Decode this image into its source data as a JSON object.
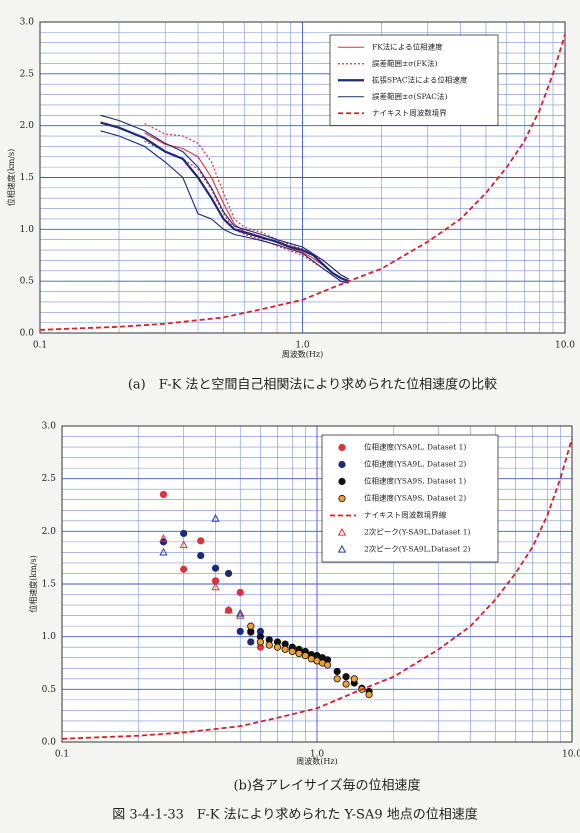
{
  "chart_data": [
    {
      "type": "line",
      "caption": "(a)　F-K 法と空間自己相関法により求められた位相速度の比較",
      "xlabel": "周波数(Hz)",
      "ylabel": "位相速度(km/s)",
      "xscale": "log",
      "grid": true,
      "minor_grid": true,
      "legend": "top-right",
      "xlim": [
        0.1,
        10
      ],
      "xticks": [
        0.1,
        {
          "value": 1,
          "label": "1.0"
        },
        {
          "value": 10,
          "label": "10.0"
        }
      ],
      "ylim": [
        0,
        3
      ],
      "yticks": [
        {
          "value": 0,
          "label": "0.0"
        },
        0.5,
        {
          "value": 1,
          "label": "1.0"
        },
        1.5,
        {
          "value": 2,
          "label": "2.0"
        },
        2.5,
        {
          "value": 3,
          "label": "3.0"
        }
      ],
      "series": [
        {
          "name": "FK法による位相速度",
          "color": "#e0303a",
          "style": "solid",
          "x": [
            0.25,
            0.3,
            0.35,
            0.4,
            0.45,
            0.5,
            0.55,
            0.6,
            0.7,
            0.8,
            0.9,
            1.0,
            1.1,
            1.2,
            1.3,
            1.4,
            1.5
          ],
          "values": [
            1.93,
            1.82,
            1.78,
            1.7,
            1.5,
            1.25,
            1.05,
            0.98,
            0.93,
            0.87,
            0.82,
            0.78,
            0.72,
            0.65,
            0.58,
            0.53,
            0.5
          ]
        },
        {
          "name": "誤差範囲±σ(FK法)",
          "color": "#e0303a",
          "style": "dotted",
          "x": [
            0.25,
            0.3,
            0.35,
            0.4,
            0.45,
            0.5,
            0.55,
            0.6,
            0.7,
            0.8,
            1.0,
            1.2,
            1.4,
            1.5
          ],
          "upper": [
            2.02,
            1.92,
            1.9,
            1.83,
            1.65,
            1.35,
            1.1,
            1.02,
            0.97,
            0.9,
            0.81,
            0.7,
            0.56,
            0.52
          ],
          "lower": [
            1.85,
            1.75,
            1.68,
            1.58,
            1.38,
            1.15,
            1.0,
            0.95,
            0.9,
            0.84,
            0.75,
            0.62,
            0.5,
            0.48
          ]
        },
        {
          "name": "拡張SPAC法による位相速度",
          "color": "#1c2a7a",
          "style": "thick",
          "x": [
            0.17,
            0.2,
            0.25,
            0.3,
            0.35,
            0.4,
            0.45,
            0.5,
            0.55,
            0.6,
            0.7,
            0.8,
            0.9,
            1.0,
            1.1,
            1.2,
            1.3,
            1.4,
            1.5
          ],
          "values": [
            2.03,
            1.98,
            1.88,
            1.75,
            1.68,
            1.5,
            1.3,
            1.1,
            1.0,
            0.97,
            0.92,
            0.88,
            0.83,
            0.8,
            0.75,
            0.66,
            0.58,
            0.53,
            0.5
          ]
        },
        {
          "name": "誤差範囲±σ(SPAC法)",
          "color": "#1c2a7a",
          "style": "solid",
          "x": [
            0.17,
            0.2,
            0.25,
            0.3,
            0.35,
            0.4,
            0.45,
            0.5,
            0.55,
            0.6,
            0.7,
            0.8,
            1.0,
            1.2,
            1.4,
            1.5
          ],
          "upper": [
            2.1,
            2.05,
            1.95,
            1.83,
            1.75,
            1.6,
            1.4,
            1.17,
            1.03,
            1.0,
            0.95,
            0.9,
            0.83,
            0.7,
            0.56,
            0.52
          ],
          "lower": [
            1.95,
            1.9,
            1.8,
            1.65,
            1.5,
            1.15,
            1.1,
            1.0,
            0.95,
            0.93,
            0.89,
            0.85,
            0.77,
            0.62,
            0.5,
            0.48
          ]
        },
        {
          "name": "ナイキスト周波数境界",
          "color": "#d8202a",
          "style": "dashed",
          "x": [
            0.1,
            0.2,
            0.3,
            0.5,
            0.7,
            1.0,
            1.5,
            2,
            3,
            4,
            5,
            6,
            7,
            8,
            9,
            10
          ],
          "values": [
            0.03,
            0.06,
            0.09,
            0.15,
            0.23,
            0.32,
            0.5,
            0.62,
            0.88,
            1.1,
            1.35,
            1.6,
            1.85,
            2.15,
            2.5,
            2.88
          ]
        }
      ]
    },
    {
      "type": "scatter",
      "caption": "(b)各アレイサイズ毎の位相速度",
      "xlabel": "周波数(Hz)",
      "ylabel": "位相速度(km/s)",
      "xscale": "log",
      "grid": true,
      "minor_grid": true,
      "legend": "top-right",
      "xlim": [
        0.1,
        10
      ],
      "xticks": [
        0.1,
        {
          "value": 1,
          "label": "1.0"
        },
        {
          "value": 10,
          "label": "10.0"
        }
      ],
      "ylim": [
        0,
        3
      ],
      "yticks": [
        {
          "value": 0,
          "label": "0.0"
        },
        0.5,
        {
          "value": 1,
          "label": "1.0"
        },
        1.5,
        {
          "value": 2,
          "label": "2.0"
        },
        2.5,
        {
          "value": 3,
          "label": "3.0"
        }
      ],
      "series": [
        {
          "name": "位相速度(YSA9L, Dataset 1)",
          "color": "#e0303a",
          "marker": "circle",
          "edge": "#e0303a",
          "x": [
            0.25,
            0.3,
            0.35,
            0.4,
            0.45,
            0.5,
            0.55,
            0.6
          ],
          "values": [
            2.35,
            1.64,
            1.91,
            1.53,
            1.25,
            1.42,
            1.04,
            0.9
          ]
        },
        {
          "name": "位相速度(YSA9L, Dataset 2)",
          "color": "#1c2a7a",
          "marker": "circle",
          "edge": "#1c2a7a",
          "x": [
            0.25,
            0.3,
            0.35,
            0.4,
            0.45,
            0.5,
            0.55,
            0.6
          ],
          "values": [
            1.9,
            1.98,
            1.77,
            1.65,
            1.6,
            1.05,
            0.95,
            1.05
          ]
        },
        {
          "name": "位相速度(YSA9S, Dataset 1)",
          "color": "#111111",
          "marker": "circle",
          "edge": "#111111",
          "x": [
            0.55,
            0.6,
            0.65,
            0.7,
            0.75,
            0.8,
            0.85,
            0.9,
            0.95,
            1.0,
            1.05,
            1.1,
            1.2,
            1.3,
            1.4,
            1.5,
            1.6
          ],
          "values": [
            1.05,
            1.0,
            0.97,
            0.95,
            0.93,
            0.9,
            0.88,
            0.86,
            0.83,
            0.82,
            0.8,
            0.78,
            0.67,
            0.62,
            0.56,
            0.51,
            0.48
          ]
        },
        {
          "name": "位相速度(YSA9S, Dataset 2)",
          "color": "#f0a030",
          "marker": "circle",
          "edge": "#111111",
          "x": [
            0.55,
            0.6,
            0.65,
            0.7,
            0.75,
            0.8,
            0.85,
            0.9,
            0.95,
            1.0,
            1.05,
            1.1,
            1.2,
            1.3,
            1.4,
            1.5,
            1.6
          ],
          "values": [
            1.1,
            0.95,
            0.92,
            0.9,
            0.88,
            0.86,
            0.84,
            0.82,
            0.79,
            0.77,
            0.75,
            0.73,
            0.6,
            0.55,
            0.6,
            0.5,
            0.45
          ]
        },
        {
          "name": "ナイキスト周波数境界線",
          "color": "#d8202a",
          "style": "dashed",
          "x": [
            0.1,
            0.2,
            0.3,
            0.5,
            0.7,
            1.0,
            1.5,
            2,
            3,
            4,
            5,
            6,
            7,
            8,
            9,
            10
          ],
          "values": [
            0.03,
            0.06,
            0.09,
            0.15,
            0.23,
            0.32,
            0.5,
            0.62,
            0.88,
            1.1,
            1.35,
            1.6,
            1.85,
            2.15,
            2.5,
            2.88
          ]
        },
        {
          "name": "2次ピーク(Y-SA9L,Dataset 1)",
          "color": "#e0303a",
          "marker": "triangle",
          "x": [
            0.25,
            0.3,
            0.4,
            0.45,
            0.5
          ],
          "values": [
            1.93,
            1.87,
            1.47,
            1.25,
            1.2
          ]
        },
        {
          "name": "2次ピーク(Y-SA9L,Dataset 2)",
          "color": "#2040b0",
          "marker": "triangle",
          "x": [
            0.25,
            0.4,
            0.5
          ],
          "values": [
            1.8,
            2.12,
            1.22
          ]
        }
      ]
    }
  ],
  "figure_caption": "図 3-4-1-33　F-K 法により求められた Y-SA9 地点の位相速度"
}
